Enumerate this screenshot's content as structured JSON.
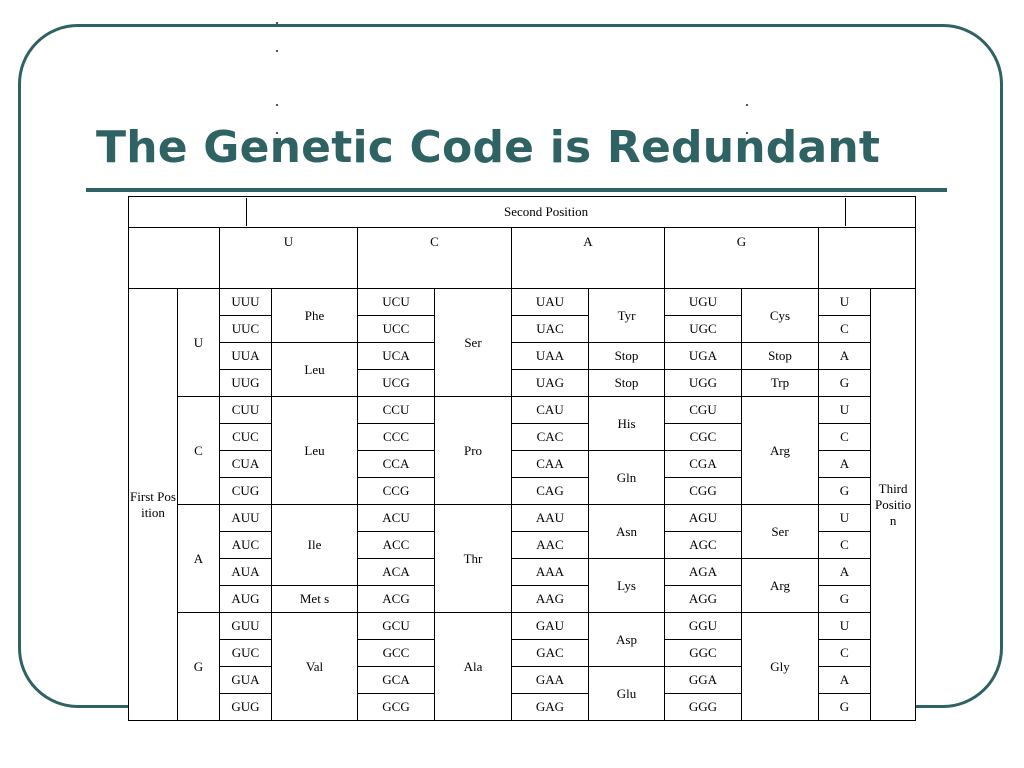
{
  "title": "The Genetic Code is Redundant",
  "table": {
    "second_position_label": "Second Position",
    "first_position_label": "First Position",
    "third_position_label": "Third Position",
    "second_bases": [
      "U",
      "C",
      "A",
      "G"
    ],
    "first_bases": [
      "U",
      "C",
      "A",
      "G"
    ],
    "third_bases": [
      "U",
      "C",
      "A",
      "G"
    ],
    "codons": {
      "U": [
        [
          "UUU",
          "UCU",
          "UAU",
          "UGU"
        ],
        [
          "UUC",
          "UCC",
          "UAC",
          "UGC"
        ],
        [
          "UUA",
          "UCA",
          "UAA",
          "UGA"
        ],
        [
          "UUG",
          "UCG",
          "UAG",
          "UGG"
        ]
      ],
      "C": [
        [
          "CUU",
          "CCU",
          "CAU",
          "CGU"
        ],
        [
          "CUC",
          "CCC",
          "CAC",
          "CGC"
        ],
        [
          "CUA",
          "CCA",
          "CAA",
          "CGA"
        ],
        [
          "CUG",
          "CCG",
          "CAG",
          "CGG"
        ]
      ],
      "A": [
        [
          "AUU",
          "ACU",
          "AAU",
          "AGU"
        ],
        [
          "AUC",
          "ACC",
          "AAC",
          "AGC"
        ],
        [
          "AUA",
          "ACA",
          "AAA",
          "AGA"
        ],
        [
          "AUG",
          "ACG",
          "AAG",
          "AGG"
        ]
      ],
      "G": [
        [
          "GUU",
          "GCU",
          "GAU",
          "GGU"
        ],
        [
          "GUC",
          "GCC",
          "GAC",
          "GGC"
        ],
        [
          "GUA",
          "GCA",
          "GAA",
          "GGA"
        ],
        [
          "GUG",
          "GCG",
          "GAG",
          "GGG"
        ]
      ]
    },
    "amino_acids": {
      "phe": "Phe",
      "leu": "Leu",
      "ile": "Ile",
      "met": "Met s",
      "val": "Val",
      "ser": "Ser",
      "pro": "Pro",
      "thr": "Thr",
      "ala": "Ala",
      "tyr": "Tyr",
      "stop": "Stop",
      "his": "His",
      "gln": "Gln",
      "asn": "Asn",
      "lys": "Lys",
      "asp": "Asp",
      "glu": "Glu",
      "cys": "Cys",
      "trp": "Trp",
      "arg": "Arg",
      "gly": "Gly"
    }
  }
}
